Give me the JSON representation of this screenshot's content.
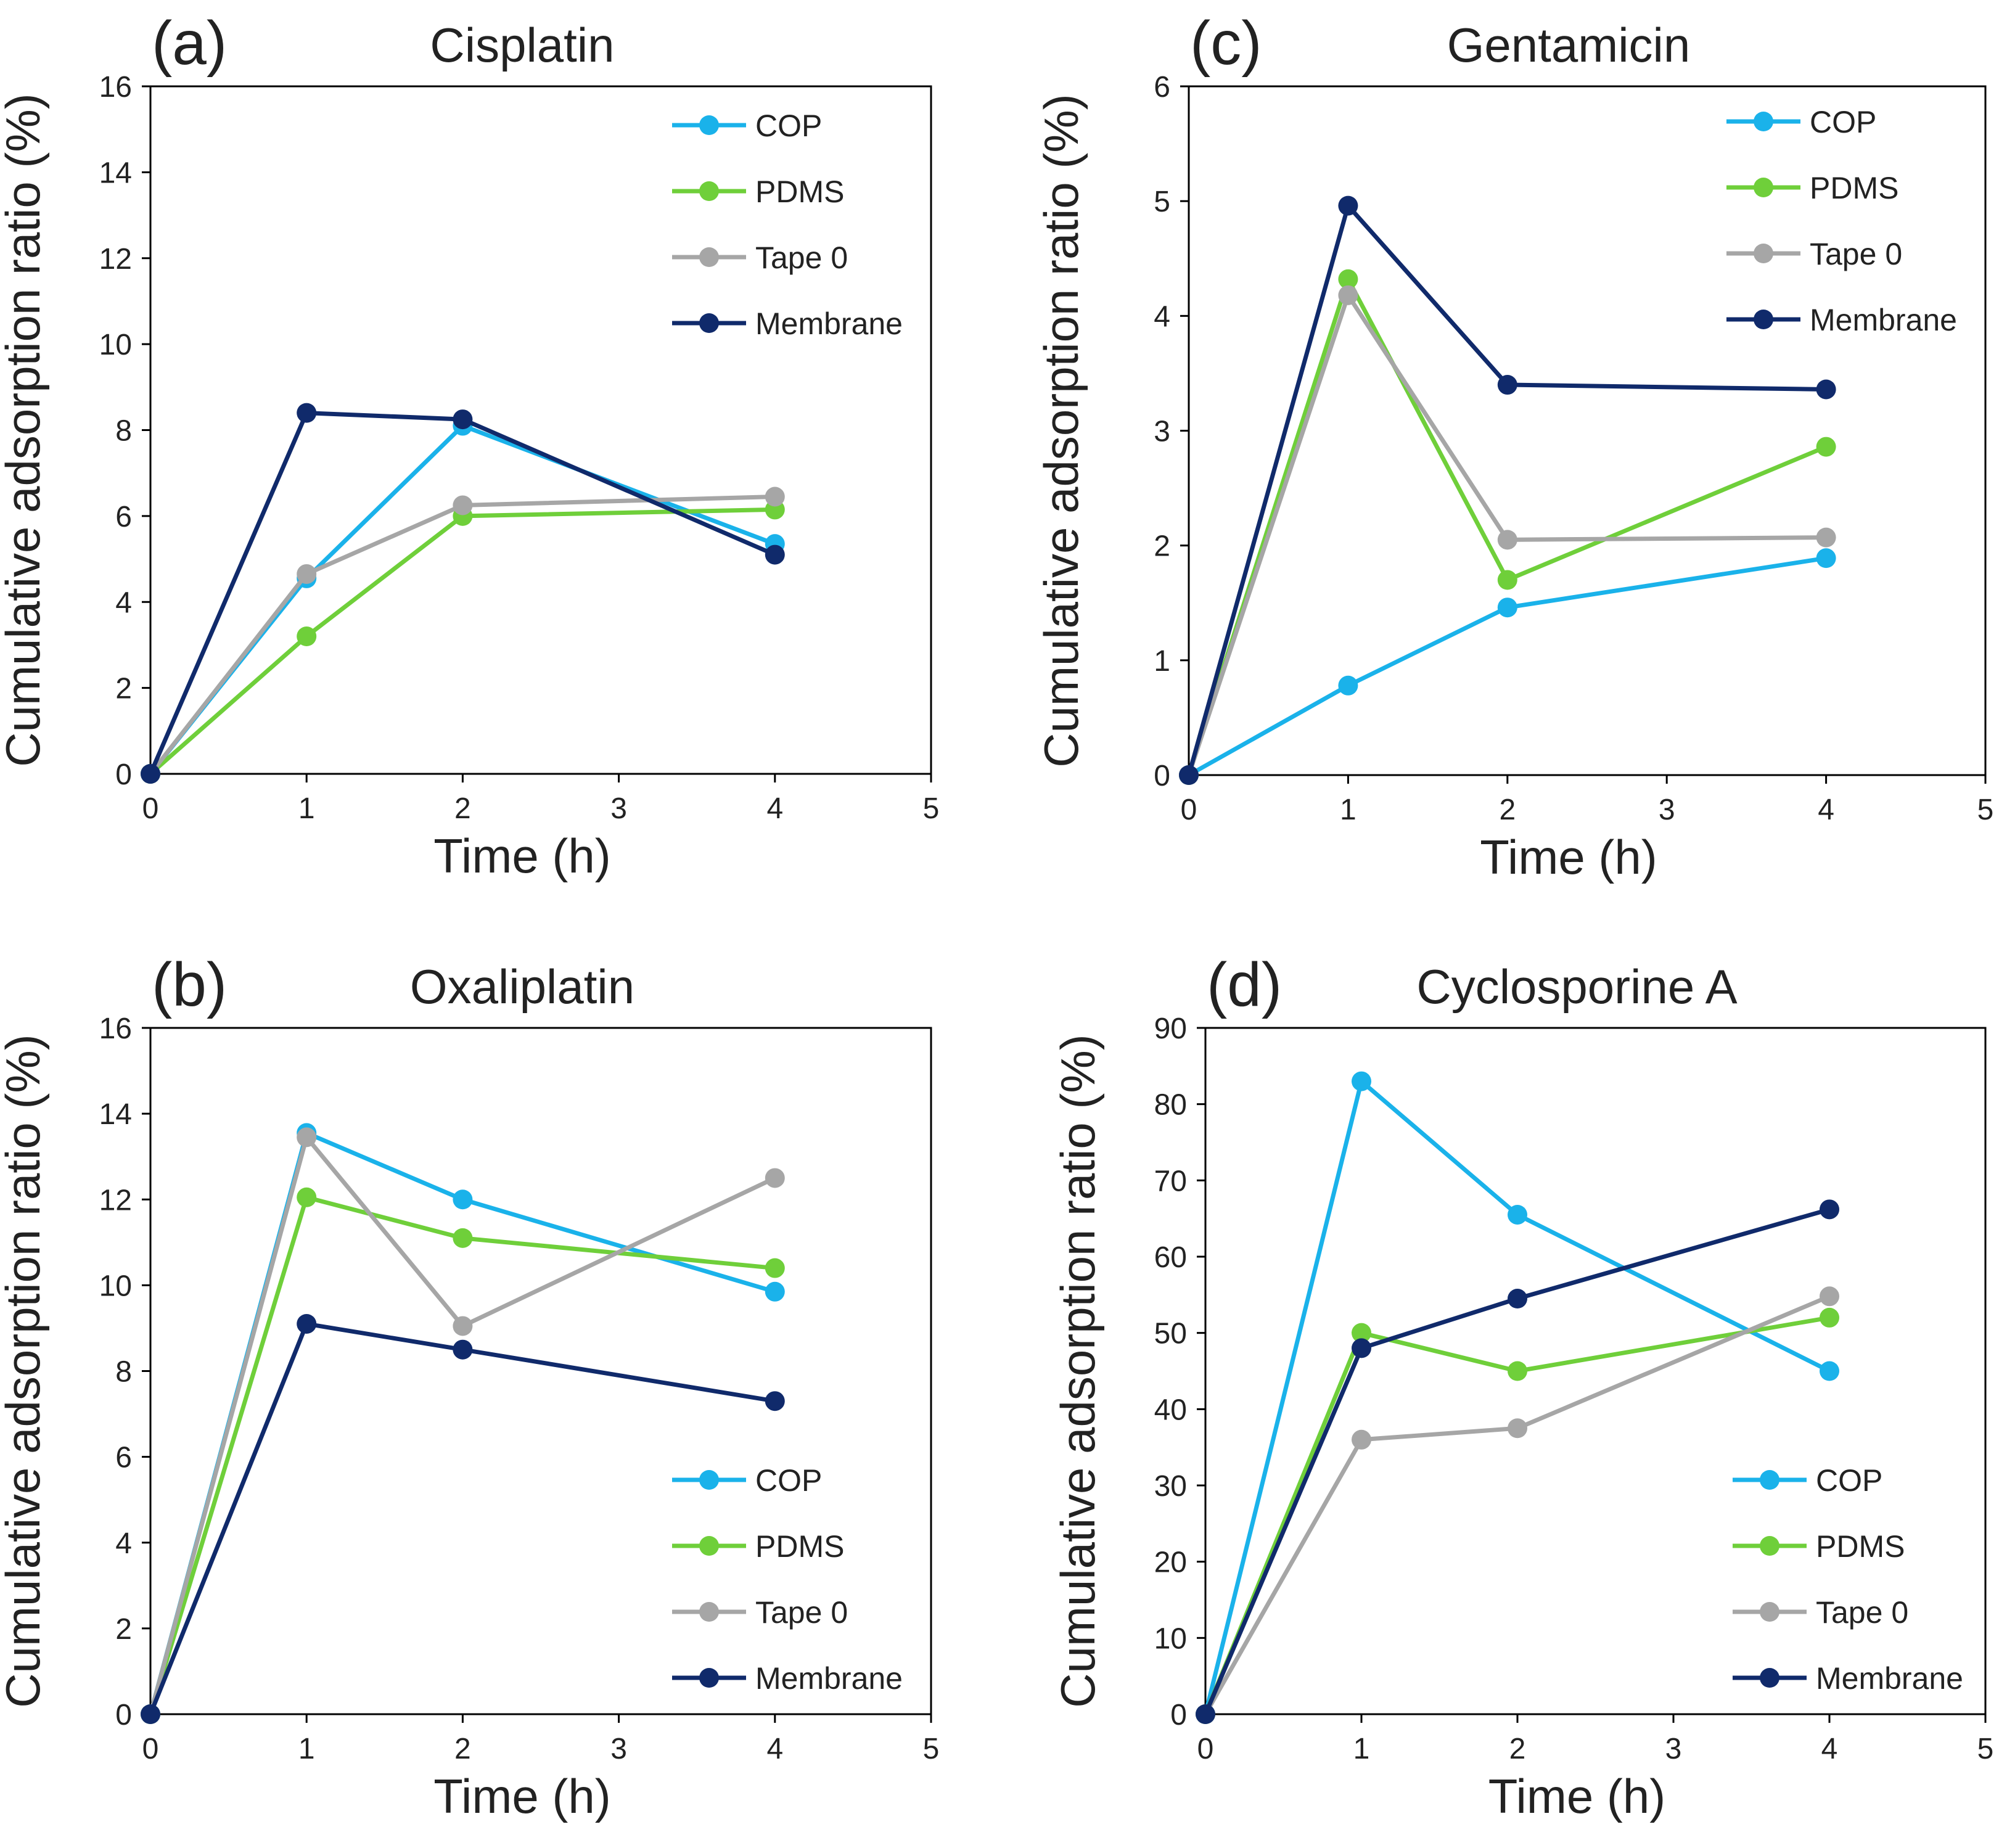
{
  "colors": {
    "COP": "#1ab2ea",
    "PDMS": "#6fcf3a",
    "Tape 0": "#a6a6a6",
    "Membrane": "#102a6b",
    "axis": "#000000",
    "text": "#222222"
  },
  "chart_data": [
    {
      "type": "line",
      "panel": "(a)",
      "title": "Cisplatin",
      "xlabel": "Time (h)",
      "ylabel": "Cumulative adsorption ratio (%)",
      "xlim": [
        0,
        5
      ],
      "ylim": [
        0,
        16
      ],
      "xticks": [
        0,
        1,
        2,
        3,
        4,
        5
      ],
      "yticks": [
        0,
        2,
        4,
        6,
        8,
        10,
        12,
        14,
        16
      ],
      "grid": false,
      "legend_position": "top-right",
      "x": [
        0,
        1,
        2,
        4
      ],
      "series": [
        {
          "name": "COP",
          "values": [
            0,
            4.55,
            8.1,
            5.35
          ]
        },
        {
          "name": "PDMS",
          "values": [
            0,
            3.2,
            6.0,
            6.15
          ]
        },
        {
          "name": "Tape 0",
          "values": [
            0,
            4.65,
            6.25,
            6.45
          ]
        },
        {
          "name": "Membrane",
          "values": [
            0,
            8.4,
            8.25,
            5.1
          ]
        }
      ]
    },
    {
      "type": "line",
      "panel": "(c)",
      "title": "Gentamicin",
      "xlabel": "Time (h)",
      "ylabel": "Cumulative adsorption ratio (%)",
      "xlim": [
        0,
        5
      ],
      "ylim": [
        0,
        6
      ],
      "xticks": [
        0,
        1,
        2,
        3,
        4,
        5
      ],
      "yticks": [
        0,
        1,
        2,
        3,
        4,
        5,
        6
      ],
      "grid": false,
      "legend_position": "top-right",
      "x": [
        0,
        1,
        2,
        4
      ],
      "series": [
        {
          "name": "COP",
          "values": [
            0,
            0.78,
            1.46,
            1.89
          ]
        },
        {
          "name": "PDMS",
          "values": [
            0,
            4.32,
            1.7,
            2.86
          ]
        },
        {
          "name": "Tape 0",
          "values": [
            0,
            4.18,
            2.05,
            2.07
          ]
        },
        {
          "name": "Membrane",
          "values": [
            0,
            4.96,
            3.4,
            3.36
          ]
        }
      ]
    },
    {
      "type": "line",
      "panel": "(b)",
      "title": "Oxaliplatin",
      "xlabel": "Time (h)",
      "ylabel": "Cumulative adsorption ratio (%)",
      "xlim": [
        0,
        5
      ],
      "ylim": [
        0,
        16
      ],
      "xticks": [
        0,
        1,
        2,
        3,
        4,
        5
      ],
      "yticks": [
        0,
        2,
        4,
        6,
        8,
        10,
        12,
        14,
        16
      ],
      "grid": false,
      "legend_position": "bottom-right",
      "x": [
        0,
        1,
        2,
        4
      ],
      "series": [
        {
          "name": "COP",
          "values": [
            0,
            13.55,
            12.0,
            9.85
          ]
        },
        {
          "name": "PDMS",
          "values": [
            0,
            12.05,
            11.1,
            10.4
          ]
        },
        {
          "name": "Tape 0",
          "values": [
            0,
            13.45,
            9.05,
            12.5
          ]
        },
        {
          "name": "Membrane",
          "values": [
            0,
            9.1,
            8.5,
            7.3
          ]
        }
      ]
    },
    {
      "type": "line",
      "panel": "(d)",
      "title": "Cyclosporine A",
      "xlabel": "Time (h)",
      "ylabel": "Cumulative adsorption ratio (%)",
      "xlim": [
        0,
        5
      ],
      "ylim": [
        0,
        90
      ],
      "xticks": [
        0,
        1,
        2,
        3,
        4,
        5
      ],
      "yticks": [
        0,
        10,
        20,
        30,
        40,
        50,
        60,
        70,
        80,
        90
      ],
      "grid": false,
      "legend_position": "bottom-right",
      "x": [
        0,
        1,
        2,
        4
      ],
      "series": [
        {
          "name": "COP",
          "values": [
            0,
            83.0,
            65.5,
            45.0
          ]
        },
        {
          "name": "PDMS",
          "values": [
            0,
            50.0,
            45.0,
            52.0
          ]
        },
        {
          "name": "Tape 0",
          "values": [
            0,
            36.0,
            37.5,
            54.8
          ]
        },
        {
          "name": "Membrane",
          "values": [
            0,
            48.0,
            54.5,
            66.2
          ]
        }
      ]
    }
  ]
}
